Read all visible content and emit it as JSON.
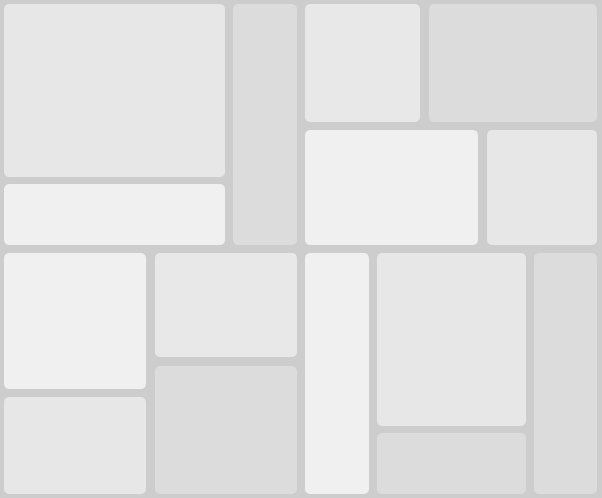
{
  "background_color": "#cdcdcd",
  "panels": [
    {
      "color": "#e7e7e7"
    },
    {
      "color": "#f0f0f0"
    },
    {
      "color": "#dcdcdc"
    },
    {
      "color": "#e8e8e8"
    },
    {
      "color": "#dcdcdc"
    },
    {
      "color": "#f0f0f0"
    },
    {
      "color": "#e7e7e7"
    },
    {
      "color": "#f0f0f0"
    },
    {
      "color": "#e7e7e7"
    },
    {
      "color": "#e8e8e8"
    },
    {
      "color": "#dcdcdc"
    },
    {
      "color": "#f0f0f0"
    },
    {
      "color": "#e7e7e7"
    },
    {
      "color": "#dcdcdc"
    },
    {
      "color": "#dcdcdc"
    }
  ]
}
